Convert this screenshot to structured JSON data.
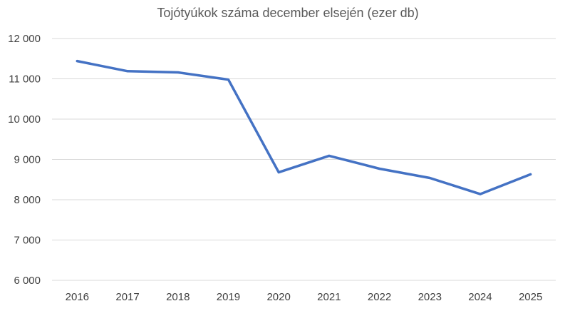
{
  "chart_data": {
    "type": "line",
    "title": "Tojótyúkok száma december elsején (ezer db)",
    "xlabel": "",
    "ylabel": "",
    "categories": [
      "2016",
      "2017",
      "2018",
      "2019",
      "2020",
      "2021",
      "2022",
      "2023",
      "2024",
      "2025"
    ],
    "series": [
      {
        "values": [
          11440,
          11190,
          11160,
          10980,
          8680,
          9090,
          8770,
          8540,
          8140,
          8630
        ],
        "color": "#4472c4"
      }
    ],
    "ylim": [
      6000,
      12000
    ],
    "yticks": [
      6000,
      7000,
      8000,
      9000,
      10000,
      11000,
      12000
    ],
    "ytick_labels": [
      "6 000",
      "7 000",
      "8 000",
      "9 000",
      "10 000",
      "11 000",
      "12 000"
    ],
    "grid": true,
    "legend": "none"
  }
}
